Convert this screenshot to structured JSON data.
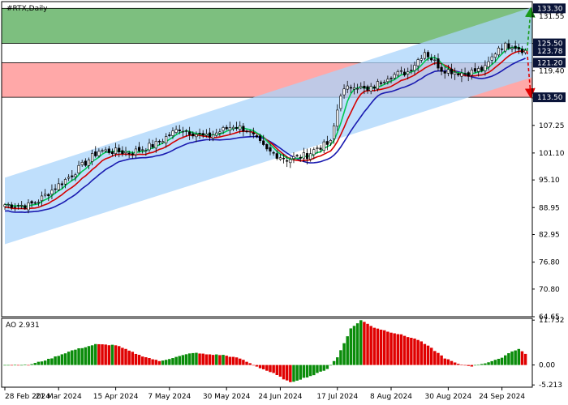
{
  "chart_data": {
    "type": "candlestick",
    "title": "#RTX,Daily",
    "ylim": [
      64.65,
      134.8
    ],
    "y_ticks": [
      "131.55",
      "125.50",
      "119.40",
      "113.35",
      "107.25",
      "101.10",
      "95.10",
      "88.95",
      "82.95",
      "76.80",
      "70.80",
      "64.65"
    ],
    "x_ticks": [
      "28 Feb 2024",
      "21 Mar 2024",
      "15 Apr 2024",
      "7 May 2024",
      "30 May 2024",
      "24 Jun 2024",
      "17 Jul 2024",
      "8 Aug 2024",
      "30 Aug 2024",
      "24 Sep 2024"
    ],
    "bars_count": 156,
    "price_anchors": [
      {
        "bar": 0,
        "price": 89.6
      },
      {
        "bar": 7,
        "price": 89.4
      },
      {
        "bar": 10,
        "price": 90.5
      },
      {
        "bar": 20,
        "price": 96.3
      },
      {
        "bar": 28,
        "price": 101.6
      },
      {
        "bar": 38,
        "price": 101.3
      },
      {
        "bar": 45,
        "price": 103.1
      },
      {
        "bar": 52,
        "price": 106.6
      },
      {
        "bar": 60,
        "price": 104.6
      },
      {
        "bar": 68,
        "price": 107.2
      },
      {
        "bar": 72,
        "price": 106.3
      },
      {
        "bar": 78,
        "price": 101.6
      },
      {
        "bar": 84,
        "price": 99.7
      },
      {
        "bar": 90,
        "price": 100.6
      },
      {
        "bar": 93,
        "price": 102.3
      },
      {
        "bar": 97,
        "price": 103.3
      },
      {
        "bar": 100,
        "price": 114.4
      },
      {
        "bar": 104,
        "price": 116.4
      },
      {
        "bar": 108,
        "price": 114.8
      },
      {
        "bar": 114,
        "price": 118.2
      },
      {
        "bar": 120,
        "price": 119.2
      },
      {
        "bar": 125,
        "price": 123.7
      },
      {
        "bar": 130,
        "price": 119.8
      },
      {
        "bar": 137,
        "price": 118.8
      },
      {
        "bar": 143,
        "price": 119.9
      },
      {
        "bar": 147,
        "price": 124.7
      },
      {
        "bar": 151,
        "price": 125.2
      },
      {
        "bar": 155,
        "price": 123.8
      }
    ],
    "ma_fast_color": "#00c853",
    "ma_mid_color": "#d50000",
    "ma_slow_color": "#1a1ab0",
    "ma_periods": [
      5,
      8,
      13
    ],
    "channel": {
      "color": "#aad4fb",
      "upper": [
        {
          "bar": 0,
          "price": 95.6
        },
        {
          "bar": 158,
          "price": 133.8
        }
      ],
      "lower": [
        {
          "bar": 0,
          "price": 80.8
        },
        {
          "bar": 158,
          "price": 118.2
        }
      ]
    },
    "zones": [
      {
        "name": "resistance",
        "from": 125.5,
        "to": 133.3,
        "color": "#7dbf7f"
      },
      {
        "name": "support",
        "from": 113.5,
        "to": 121.2,
        "color": "#ffa8a8"
      }
    ],
    "forecast": {
      "start_price": 123.78,
      "up_target": 133.3,
      "down_target": 113.5,
      "up_color": "#1a9a1a",
      "down_color": "#e00000"
    },
    "price_tags": [
      {
        "label": "133.30",
        "value": 133.3,
        "color": "#0a1438"
      },
      {
        "label": "125.50",
        "value": 125.5,
        "color": "#0a1438"
      },
      {
        "label": "123.78",
        "value": 123.78,
        "color": "#0a1438"
      },
      {
        "label": "121.20",
        "value": 121.2,
        "color": "#0a1438"
      },
      {
        "label": "113.50",
        "value": 113.5,
        "color": "#0a1438"
      }
    ],
    "ao": {
      "label": "AO 2.931",
      "ylim": [
        -5.8,
        12.2
      ],
      "y_ticks": [
        "11.732",
        "0.00",
        "-5.213"
      ],
      "anchors": [
        {
          "bar": 0,
          "value": 0.0
        },
        {
          "bar": 7,
          "value": 0.0
        },
        {
          "bar": 13,
          "value": 1.5
        },
        {
          "bar": 20,
          "value": 3.8
        },
        {
          "bar": 27,
          "value": 5.4
        },
        {
          "bar": 33,
          "value": 5.2
        },
        {
          "bar": 40,
          "value": 2.6
        },
        {
          "bar": 46,
          "value": 1.0
        },
        {
          "bar": 52,
          "value": 2.3
        },
        {
          "bar": 56,
          "value": 3.2
        },
        {
          "bar": 60,
          "value": 2.8
        },
        {
          "bar": 65,
          "value": 2.6
        },
        {
          "bar": 70,
          "value": 1.7
        },
        {
          "bar": 75,
          "value": -0.4
        },
        {
          "bar": 80,
          "value": -2.2
        },
        {
          "bar": 85,
          "value": -4.6
        },
        {
          "bar": 88,
          "value": -3.7
        },
        {
          "bar": 92,
          "value": -2.6
        },
        {
          "bar": 96,
          "value": -1.0
        },
        {
          "bar": 99,
          "value": 2.0
        },
        {
          "bar": 103,
          "value": 9.5
        },
        {
          "bar": 106,
          "value": 11.7
        },
        {
          "bar": 110,
          "value": 9.8
        },
        {
          "bar": 114,
          "value": 8.8
        },
        {
          "bar": 118,
          "value": 7.9
        },
        {
          "bar": 123,
          "value": 6.6
        },
        {
          "bar": 127,
          "value": 4.4
        },
        {
          "bar": 131,
          "value": 1.8
        },
        {
          "bar": 135,
          "value": 0.2
        },
        {
          "bar": 139,
          "value": -0.3
        },
        {
          "bar": 143,
          "value": 0.5
        },
        {
          "bar": 147,
          "value": 1.5
        },
        {
          "bar": 151,
          "value": 3.6
        },
        {
          "bar": 153,
          "value": 4.2
        },
        {
          "bar": 155,
          "value": 2.9
        }
      ],
      "up_color": "#0a8c0a",
      "down_color": "#e00000"
    }
  }
}
